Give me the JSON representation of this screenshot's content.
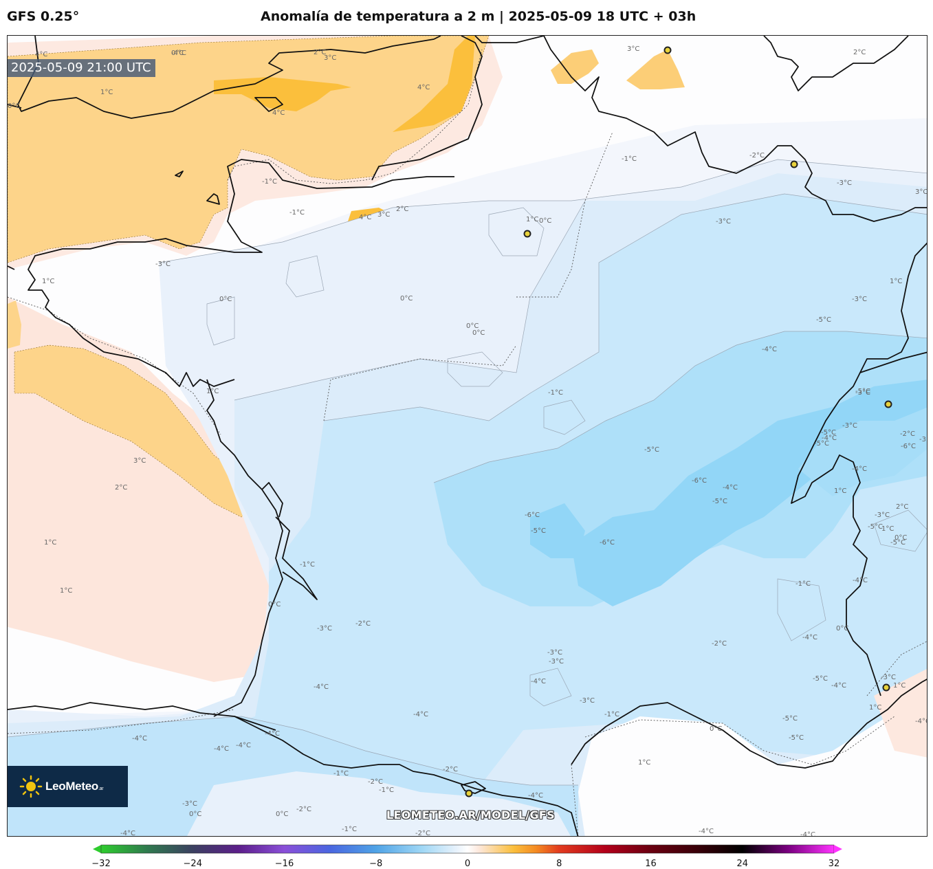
{
  "header": {
    "model": "GFS 0.25°",
    "title": "Anomalía de temperatura a 2 m | 2025-05-09 18 UTC + 03h"
  },
  "map": {
    "valid_time": "2025-05-09 21:00 UTC",
    "watermark": "LEOMETEO.AR/MODEL/GFS",
    "logo": {
      "name": "LeoMeteo",
      "suffix": ".ar"
    },
    "contour_labels": [
      "0°C",
      "2°C",
      "3°C",
      "4°C",
      "4°C",
      "4°C",
      "3°C",
      "3°C",
      "2°C",
      "1°C",
      "1°C",
      "0°C",
      "-1°C",
      "-1°C",
      "2°C",
      "3°C",
      "4°C",
      "1°C",
      "0°C",
      "-1°C",
      "-2°C",
      "-3°C",
      "-3°C",
      "-3°C",
      "0°C",
      "0°C",
      "0°C",
      "0°C",
      "1°C",
      "-3°C",
      "-5°C",
      "-4°C",
      "-5°C",
      "1°C",
      "3°C",
      "2°C",
      "-1°C",
      "-5°C",
      "-6°C",
      "-5°C",
      "-4°C",
      "-5°C",
      "-6°C",
      "-6°C",
      "-5°C",
      "-3°C",
      "-4°C",
      "-3°C",
      "-4°C",
      "-1°C",
      "1°C",
      "1°C",
      "0°C",
      "-3°C",
      "-2°C",
      "-4°C",
      "-3°C",
      "-3°C",
      "-4°C",
      "-4°C",
      "-2°C",
      "-4°C",
      "0°C",
      "-5°C",
      "-4°C",
      "-5°C",
      "-4°C",
      "-3°C",
      "-1°C",
      "0°C",
      "-5°C",
      "1°C",
      "-4°C",
      "-4°C",
      "-4°C",
      "-4°C",
      "-2°C",
      "-1°C",
      "-2°C",
      "-3°C",
      "0°C",
      "0°C",
      "-4°C",
      "-2°C",
      "-1°C",
      "1°C",
      "-4°C",
      "-4°C",
      "-4°C",
      "-3°C",
      "-2°C",
      "-1°C",
      "0°C",
      "1°C",
      "1°C",
      "-5°C",
      "2°C",
      "-2°C",
      "-3°C",
      "-5°C",
      "-4°C",
      "-1°C",
      "1°C",
      "-6°C",
      "-3°C",
      "-5°C",
      "-4°C"
    ],
    "cities": 9
  },
  "colors": {
    "warm_fill": "#fbbf3c",
    "warm_mid": "#fdd588",
    "warm_light": "#fce5dc",
    "neutral": "#f7f9fe",
    "cool_1": "#e6f0fb",
    "cool_2": "#d7ebfa",
    "cool_3": "#c4e7fb",
    "cool_4": "#a9dff9",
    "cool_5": "#8fd8f8"
  },
  "colorbar": {
    "ticks": [
      "−32",
      "−24",
      "−16",
      "−8",
      "0",
      "8",
      "16",
      "24",
      "32"
    ],
    "min": -32,
    "max": 32,
    "stops": [
      [
        -32,
        "#2ecc2e"
      ],
      [
        -28,
        "#2f7a4e"
      ],
      [
        -24,
        "#3b4060"
      ],
      [
        -20,
        "#5c1e8a"
      ],
      [
        -16,
        "#8a4fd8"
      ],
      [
        -12,
        "#4a66e0"
      ],
      [
        -8,
        "#4fa3e6"
      ],
      [
        -4,
        "#9fd7f5"
      ],
      [
        -1,
        "#e7f2fc"
      ],
      [
        0,
        "#ffffff"
      ],
      [
        1,
        "#fde8dc"
      ],
      [
        4,
        "#fbbf3c"
      ],
      [
        6,
        "#f48a22"
      ],
      [
        8,
        "#e23b1e"
      ],
      [
        12,
        "#b3001a"
      ],
      [
        16,
        "#6a0010"
      ],
      [
        20,
        "#3a0008"
      ],
      [
        24,
        "#000000"
      ],
      [
        28,
        "#7a0080"
      ],
      [
        32,
        "#ff33ff"
      ]
    ]
  }
}
